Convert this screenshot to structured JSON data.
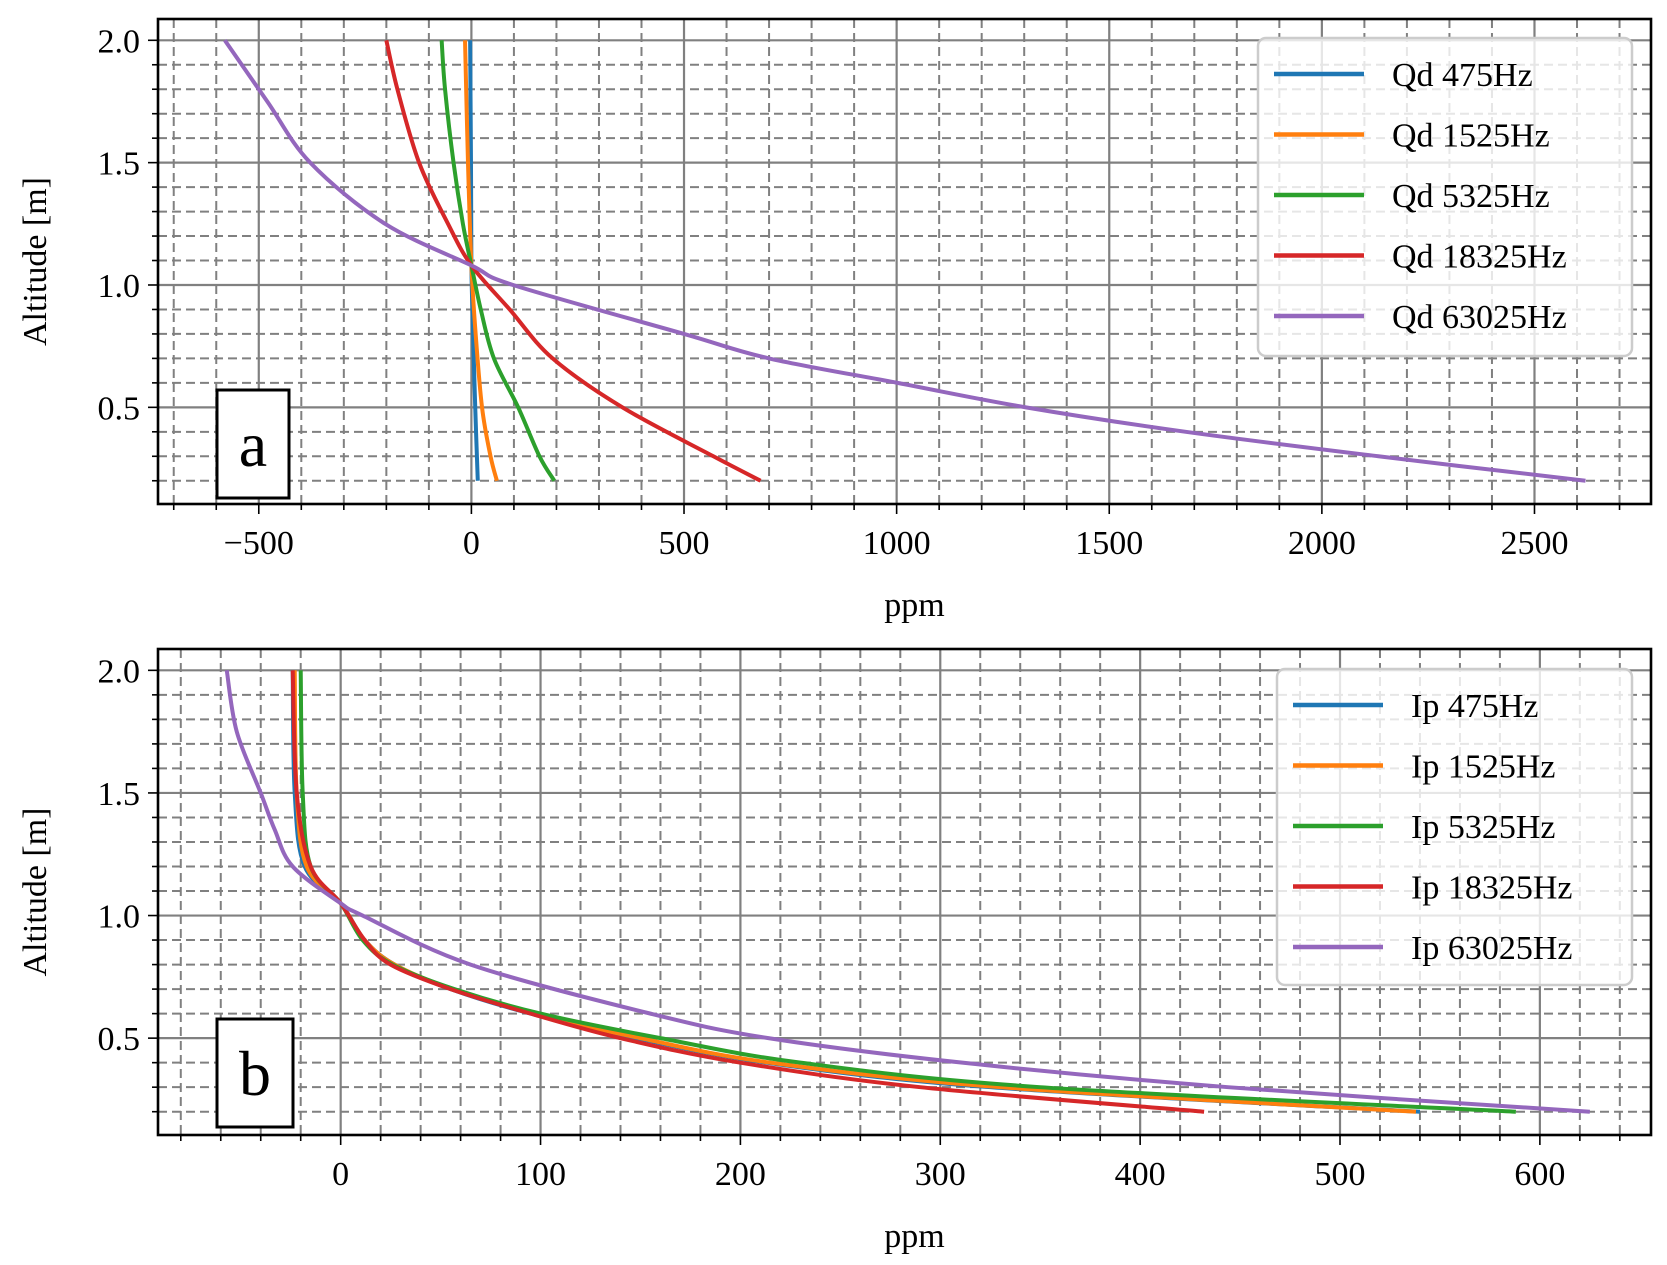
{
  "chart_data": [
    {
      "type": "line",
      "panel_label": "a",
      "xlabel": "ppm",
      "ylabel": "Altitude [m]",
      "xlim": [
        -737,
        2774
      ],
      "ylim": [
        0.105,
        2.087
      ],
      "xticks": [
        -500,
        0,
        500,
        1000,
        1500,
        2000,
        2500
      ],
      "xtick_labels": [
        "−500",
        "0",
        "500",
        "1000",
        "1500",
        "2000",
        "2500"
      ],
      "x_minor_step": 100,
      "yticks": [
        0.5,
        1.0,
        1.5,
        2.0
      ],
      "ytick_labels": [
        "0.5",
        "1.0",
        "1.5",
        "2.0"
      ],
      "y_minor_step": 0.1,
      "grid": true,
      "legend_position": "top-right",
      "series": [
        {
          "name": "Qd 475Hz",
          "color": "#1f77b4",
          "y": [
            2.0,
            1.5,
            1.08,
            0.8,
            0.5,
            0.2
          ],
          "x": [
            -3,
            -1,
            0,
            4,
            9,
            15
          ]
        },
        {
          "name": "Qd 1525Hz",
          "color": "#ff7f0e",
          "y": [
            2.0,
            1.5,
            1.08,
            0.8,
            0.5,
            0.3,
            0.2
          ],
          "x": [
            -15,
            -8,
            0,
            10,
            25,
            45,
            60
          ]
        },
        {
          "name": "Qd 5325Hz",
          "color": "#2ca02c",
          "y": [
            2.0,
            1.8,
            1.5,
            1.25,
            1.08,
            0.9,
            0.7,
            0.5,
            0.3,
            0.2
          ],
          "x": [
            -70,
            -62,
            -42,
            -20,
            0,
            22,
            53,
            110,
            160,
            195
          ]
        },
        {
          "name": "Qd 18325Hz",
          "color": "#d62728",
          "y": [
            2.0,
            1.8,
            1.5,
            1.25,
            1.08,
            0.9,
            0.7,
            0.5,
            0.3,
            0.2
          ],
          "x": [
            -200,
            -174,
            -123,
            -55,
            0,
            90,
            191,
            355,
            569,
            680
          ]
        },
        {
          "name": "Qd 63025Hz",
          "color": "#9467bd",
          "y": [
            2.0,
            1.75,
            1.5,
            1.25,
            1.08,
            1.0,
            0.8,
            0.7,
            0.6,
            0.5,
            0.4,
            0.3,
            0.2
          ],
          "x": [
            -580,
            -480,
            -379,
            -203,
            0,
            98,
            500,
            700,
            1002,
            1304,
            1680,
            2133,
            2620
          ]
        }
      ]
    },
    {
      "type": "line",
      "panel_label": "b",
      "xlabel": "ppm",
      "ylabel": "Altitude [m]",
      "xlim": [
        -91.4,
        655.6
      ],
      "ylim": [
        0.105,
        2.087
      ],
      "xticks": [
        0,
        100,
        200,
        300,
        400,
        500,
        600
      ],
      "xtick_labels": [
        "0",
        "100",
        "200",
        "300",
        "400",
        "500",
        "600"
      ],
      "x_minor_step": 20,
      "yticks": [
        0.5,
        1.0,
        1.5,
        2.0
      ],
      "ytick_labels": [
        "0.5",
        "1.0",
        "1.5",
        "2.0"
      ],
      "y_minor_step": 0.1,
      "grid": true,
      "legend_position": "top-right",
      "series": [
        {
          "name": "Ip 475Hz",
          "color": "#1f77b4",
          "y": [
            2.0,
            1.5,
            1.2,
            1.05,
            0.9,
            0.8,
            0.7,
            0.6,
            0.5,
            0.4,
            0.3,
            0.2
          ],
          "x": [
            -24,
            -23,
            -18,
            0,
            12,
            27,
            55,
            95,
            148,
            213,
            325,
            540
          ]
        },
        {
          "name": "Ip 1525Hz",
          "color": "#ff7f0e",
          "y": [
            2.0,
            1.5,
            1.2,
            1.05,
            0.9,
            0.8,
            0.7,
            0.6,
            0.5,
            0.4,
            0.3,
            0.2
          ],
          "x": [
            -23,
            -22,
            -17,
            0,
            12,
            27,
            56,
            97,
            150,
            215,
            330,
            538
          ]
        },
        {
          "name": "Ip 5325Hz",
          "color": "#2ca02c",
          "y": [
            2.0,
            1.5,
            1.2,
            1.05,
            0.9,
            0.8,
            0.7,
            0.6,
            0.5,
            0.4,
            0.3,
            0.2
          ],
          "x": [
            -20,
            -19,
            -15,
            0,
            11,
            26,
            57,
            100,
            160,
            230,
            350,
            588
          ]
        },
        {
          "name": "Ip 18325Hz",
          "color": "#d62728",
          "y": [
            2.0,
            1.5,
            1.2,
            1.05,
            0.9,
            0.8,
            0.7,
            0.6,
            0.5,
            0.4,
            0.3,
            0.2
          ],
          "x": [
            -24,
            -22,
            -15,
            0,
            12,
            25,
            55,
            95,
            140,
            200,
            290,
            432
          ]
        },
        {
          "name": "Ip 63025Hz",
          "color": "#9467bd",
          "y": [
            2.0,
            1.75,
            1.5,
            1.35,
            1.2,
            1.05,
            1.0,
            0.8,
            0.6,
            0.5,
            0.4,
            0.3,
            0.2
          ],
          "x": [
            -57,
            -52,
            -40,
            -33,
            -24,
            0,
            11,
            65,
            155,
            214,
            311,
            444,
            625
          ]
        }
      ]
    }
  ]
}
